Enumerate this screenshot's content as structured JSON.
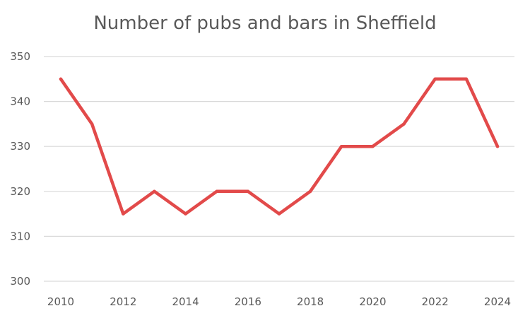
{
  "chart_data": {
    "type": "line",
    "title": "Number of pubs and bars in Sheffield",
    "xlabel": "",
    "ylabel": "",
    "x": [
      2010,
      2011,
      2012,
      2013,
      2014,
      2015,
      2016,
      2017,
      2018,
      2019,
      2020,
      2021,
      2022,
      2023,
      2024
    ],
    "x_tick_labels": [
      "2010",
      "2012",
      "2014",
      "2016",
      "2018",
      "2020",
      "2022",
      "2024"
    ],
    "y_tick_labels": [
      "300",
      "310",
      "320",
      "330",
      "340",
      "350"
    ],
    "ylim": [
      300,
      350
    ],
    "xlim": [
      2010,
      2024
    ],
    "grid": "horizontal",
    "legend": "none",
    "series": [
      {
        "color": "#e24a4a",
        "values": [
          345,
          335,
          315,
          320,
          315,
          320,
          320,
          315,
          320,
          330,
          330,
          335,
          345,
          345,
          330
        ]
      }
    ]
  }
}
